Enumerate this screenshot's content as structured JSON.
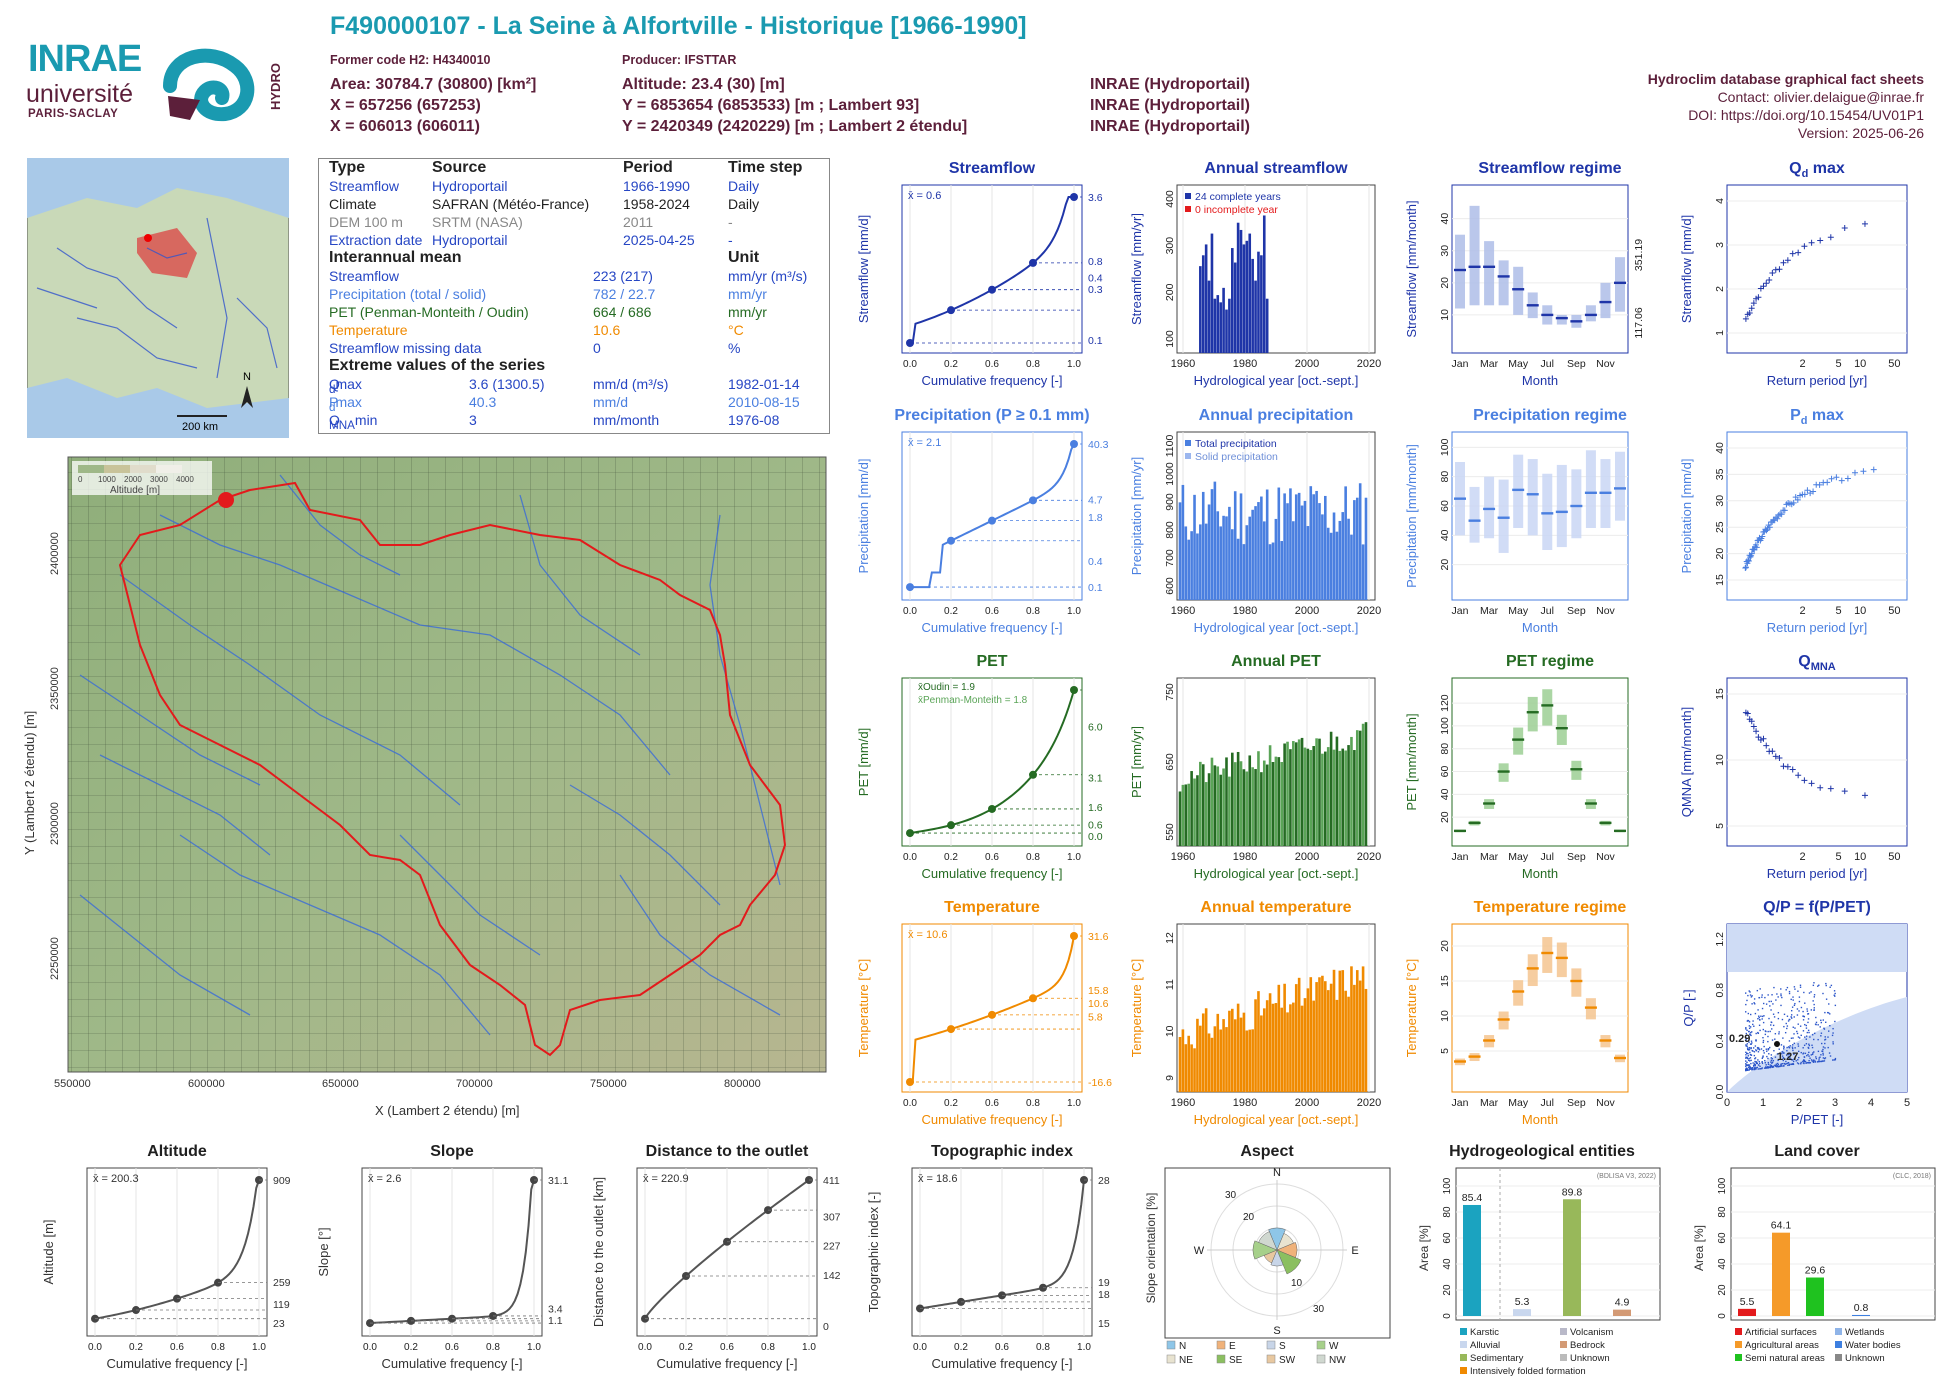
{
  "header": {
    "title": "F490000107 - La Seine à Alfortville - Historique [1966-1990]",
    "former_code": "Former code H2: H4340010",
    "producer": "Producer: IFSTTAR",
    "area": "Area: 30784.7 (30800) [km²]",
    "altitude": "Altitude: 23.4 (30) [m]",
    "x93": "X = 657256 (657253)",
    "y93": "Y = 6853654 (6853533) [m ; Lambert 93]",
    "x2": "X = 606013 (606011)",
    "y2": "Y = 2420349 (2420229) [m ; Lambert 2 étendu]",
    "src1": "INRAE (Hydroportail)",
    "src2": "INRAE (Hydroportail)",
    "src3": "INRAE (Hydroportail)",
    "db_title": "Hydroclim database graphical fact sheets",
    "contact": "Contact: olivier.delaigue@inrae.fr",
    "doi": "DOI: https://doi.org/10.15454/UV01P1",
    "version": "Version: 2025-06-26"
  },
  "logos": {
    "inrae": "INRAE",
    "universite": "université",
    "paris_saclay": "PARIS-SACLAY",
    "hydro": "HYDRO"
  },
  "info": {
    "h_type": "Type",
    "h_source": "Source",
    "h_period": "Period",
    "h_step": "Time step",
    "rows": [
      {
        "type": "Streamflow",
        "source": "Hydroportail",
        "period": "1966-1990",
        "step": "Daily"
      },
      {
        "type": "Climate",
        "source": "SAFRAN (Météo-France)",
        "period": "1958-2024",
        "step": "Daily"
      },
      {
        "type": "DEM 100 m",
        "source": "SRTM (NASA)",
        "period": "2011",
        "step": "-"
      },
      {
        "type": "Extraction date",
        "source": "Hydroportail",
        "period": "2025-04-25",
        "step": "-"
      }
    ],
    "h_mean": "Interannual mean",
    "h_unit": "Unit",
    "means": [
      {
        "name": "Streamflow",
        "value": "223 (217)",
        "unit": "mm/yr (m³/s)"
      },
      {
        "name": "Precipitation (total / solid)",
        "value": "782 / 22.7",
        "unit": "mm/yr"
      },
      {
        "name": "PET (Penman-Monteith / Oudin)",
        "value": "664 / 686",
        "unit": "mm/yr"
      },
      {
        "name": "Temperature",
        "value": "10.6",
        "unit": "°C"
      },
      {
        "name": "Streamflow missing data",
        "value": "0",
        "unit": "%"
      }
    ],
    "h_extreme": "Extreme values of the series",
    "extremes": [
      {
        "name": "Q",
        "sub": "d",
        "suffix": " max",
        "value": "3.6 (1300.5)",
        "unit": "mm/d (m³/s)",
        "date": "1982-01-14"
      },
      {
        "name": "P",
        "sub": "d",
        "suffix": " max",
        "value": "40.3",
        "unit": "mm/d",
        "date": "2010-08-15"
      },
      {
        "name": "Q",
        "sub": "MNA",
        "suffix": " min",
        "value": "3",
        "unit": "mm/month",
        "date": "1976-08"
      }
    ]
  },
  "minimap": {
    "scale": "200 km",
    "north": "N"
  },
  "bigmap": {
    "legend_ticks": [
      "0",
      "1000",
      "2000",
      "3000",
      "4000"
    ],
    "legend_title": "Altitude [m]",
    "xticks": [
      "550000",
      "600000",
      "650000",
      "700000",
      "750000",
      "800000"
    ],
    "yticks": [
      "2400000",
      "2350000",
      "2300000",
      "2250000"
    ],
    "xlabel": "X (Lambert 2 étendu) [m]",
    "ylabel": "Y (Lambert 2 étendu) [m]"
  },
  "colors": {
    "streamflow": "#1f35a8",
    "precip": "#4a7fe0",
    "pet": "#256b23",
    "temp": "#f08a00",
    "topo": "#555555",
    "title": "#1f1f1f"
  },
  "chart_data": [
    {
      "id": "streamflow_cdf",
      "type": "line",
      "title": "Streamflow",
      "ylabel": "Streamflow [mm/d]",
      "xlabel": "Cumulative frequency [-]",
      "mean": "x̄ = 0.6",
      "right_ticks": [
        "3.6",
        "0.8",
        "0.4",
        "0.3",
        "0.1"
      ],
      "scale": "log"
    },
    {
      "id": "annual_streamflow",
      "type": "bar",
      "title": "Annual streamflow",
      "ylabel": "Streamflow [mm/yr]",
      "xlabel": "Hydrological year [oct.-sept.]",
      "legend": [
        "24 complete years",
        "0 incomplete year"
      ],
      "xticks": [
        "1960",
        "1980",
        "2000",
        "2020"
      ],
      "yticks": [
        "100",
        "200",
        "300",
        "400"
      ],
      "years": [
        1966,
        1967,
        1968,
        1969,
        1970,
        1971,
        1972,
        1973,
        1974,
        1975,
        1976,
        1977,
        1978,
        1979,
        1980,
        1981,
        1982,
        1983,
        1984,
        1985,
        1986,
        1987,
        1988,
        1989
      ],
      "values": [
        240,
        270,
        300,
        200,
        330,
        150,
        160,
        140,
        180,
        120,
        150,
        290,
        250,
        360,
        340,
        300,
        310,
        330,
        260,
        200,
        280,
        270,
        380,
        150
      ]
    },
    {
      "id": "streamflow_regime",
      "type": "bar",
      "title": "Streamflow regime",
      "ylabel": "Streamflow [mm/month]",
      "xlabel": "Month",
      "right_ticks": [
        "351.19",
        "117.06"
      ],
      "months": [
        "Jan",
        "Mar",
        "May",
        "Jul",
        "Sep",
        "Nov"
      ],
      "median": [
        24,
        25,
        25,
        22,
        18,
        13,
        10,
        9,
        8,
        10,
        14,
        20
      ],
      "q1": [
        12,
        13,
        13,
        13,
        10,
        9,
        7,
        7,
        6,
        8,
        9,
        11
      ],
      "q3": [
        35,
        44,
        33,
        27,
        25,
        17,
        13,
        10,
        10,
        13,
        20,
        28
      ]
    },
    {
      "id": "qd_max",
      "type": "scatter",
      "title": "Q",
      "title_sub": "d",
      "title_suffix": " max",
      "ylabel": "Streamflow [mm/d]",
      "xlabel": "Return period [yr]",
      "xticks": [
        "2",
        "5",
        "10",
        "50"
      ],
      "yticks": [
        "1",
        "2",
        "3",
        "4"
      ]
    },
    {
      "id": "precip_cdf",
      "type": "line",
      "title": "Precipitation (P ≥ 0.1 mm)",
      "ylabel": "Precipitation [mm/d]",
      "xlabel": "Cumulative frequency [-]",
      "mean": "x̄ = 2.1",
      "right_ticks": [
        "40.3",
        "4.7",
        "1.8",
        "0.4",
        "0.1"
      ],
      "scale": "log"
    },
    {
      "id": "annual_precip",
      "type": "bar",
      "title": "Annual precipitation",
      "ylabel": "Precipitation [mm/yr]",
      "xlabel": "Hydrological year [oct.-sept.]",
      "legend": [
        "Total precipitation",
        "Solid precipitation"
      ],
      "xticks": [
        "1960",
        "1980",
        "2000",
        "2020"
      ],
      "yticks": [
        "600",
        "700",
        "800",
        "900",
        "1000",
        "1100"
      ]
    },
    {
      "id": "precip_regime",
      "type": "bar",
      "title": "Precipitation regime",
      "ylabel": "Precipitation [mm/month]",
      "xlabel": "Month",
      "months": [
        "Jan",
        "Mar",
        "May",
        "Jul",
        "Sep",
        "Nov"
      ],
      "median": [
        65,
        50,
        58,
        52,
        71,
        68,
        55,
        56,
        60,
        69,
        69,
        72
      ],
      "q1": [
        40,
        35,
        38,
        28,
        45,
        40,
        30,
        32,
        38,
        45,
        45,
        50
      ],
      "q3": [
        90,
        73,
        80,
        78,
        95,
        92,
        82,
        88,
        85,
        98,
        92,
        97
      ]
    },
    {
      "id": "pd_max",
      "type": "scatter",
      "title": "P",
      "title_sub": "d",
      "title_suffix": " max",
      "ylabel": "Precipitation [mm/d]",
      "xlabel": "Return period [yr]",
      "xticks": [
        "2",
        "5",
        "10",
        "50"
      ],
      "yticks": [
        "15",
        "20",
        "25",
        "30",
        "35",
        "40"
      ]
    },
    {
      "id": "pet_cdf",
      "type": "line",
      "title": "PET",
      "ylabel": "PET [mm/d]",
      "xlabel": "Cumulative frequency [-]",
      "mean1": "x̄Oudin = 1.9",
      "mean2": "x̄Penman-Monteith = 1.8",
      "right_ticks": [
        "6.0",
        "3.1",
        "1.6",
        "0.6",
        "0.0"
      ]
    },
    {
      "id": "annual_pet",
      "type": "bar",
      "title": "Annual PET",
      "ylabel": "PET [mm/yr]",
      "xlabel": "Hydrological year [oct.-sept.]",
      "xticks": [
        "1960",
        "1980",
        "2000",
        "2020"
      ],
      "yticks": [
        "550",
        "650",
        "750"
      ]
    },
    {
      "id": "pet_regime",
      "type": "bar",
      "title": "PET regime",
      "ylabel": "PET [mm/month]",
      "xlabel": "Month",
      "months": [
        "Jan",
        "Mar",
        "May",
        "Jul",
        "Sep",
        "Nov"
      ],
      "median": [
        8,
        15,
        32,
        60,
        88,
        112,
        118,
        98,
        62,
        32,
        15,
        8
      ],
      "yticks": [
        "20",
        "40",
        "60",
        "80",
        "100",
        "120"
      ]
    },
    {
      "id": "qmna",
      "type": "scatter",
      "title": "Q",
      "title_sub": "MNA",
      "title_suffix": "",
      "ylabel": "QMNA [mm/month]",
      "xlabel": "Return period [yr]",
      "xticks": [
        "2",
        "5",
        "10",
        "50"
      ],
      "yticks": [
        "5",
        "10",
        "15"
      ]
    },
    {
      "id": "temp_cdf",
      "type": "line",
      "title": "Temperature",
      "ylabel": "Temperature [°C]",
      "xlabel": "Cumulative frequency [-]",
      "mean": "x̄ = 10.6",
      "right_ticks": [
        "31.6",
        "15.8",
        "10.6",
        "5.8",
        "-16.6"
      ]
    },
    {
      "id": "annual_temp",
      "type": "bar",
      "title": "Annual temperature",
      "ylabel": "Temperature [°C]",
      "xlabel": "Hydrological year [oct.-sept.]",
      "xticks": [
        "1960",
        "1980",
        "2000",
        "2020"
      ],
      "yticks": [
        "9",
        "10",
        "11",
        "12"
      ]
    },
    {
      "id": "temp_regime",
      "type": "bar",
      "title": "Temperature regime",
      "ylabel": "Temperature [°C]",
      "xlabel": "Month",
      "months": [
        "Jan",
        "Mar",
        "May",
        "Jul",
        "Sep",
        "Nov"
      ],
      "median": [
        3.5,
        4.2,
        6.5,
        9.5,
        13.5,
        16.8,
        19,
        18.3,
        15,
        11.2,
        6.5,
        4
      ],
      "yticks": [
        "5",
        "10",
        "15",
        "20"
      ]
    },
    {
      "id": "qp_ppet",
      "type": "scatter",
      "title": "Q/P = f(P/PET)",
      "ylabel": "Q/P [-]",
      "xlabel": "P/PET [-]",
      "point_labels": [
        "0.29",
        "1.27"
      ],
      "xticks": [
        "0",
        "1",
        "2",
        "3",
        "4",
        "5"
      ],
      "yticks": [
        "0.0",
        "0.4",
        "0.8",
        "1.2"
      ]
    },
    {
      "id": "altitude",
      "type": "line",
      "title": "Altitude",
      "ylabel": "Altitude [m]",
      "xlabel": "Cumulative frequency [-]",
      "mean": "x̄ = 200.3",
      "right_ticks": [
        "909",
        "259",
        "119",
        "23"
      ]
    },
    {
      "id": "slope",
      "type": "line",
      "title": "Slope",
      "ylabel": "Slope [°]",
      "xlabel": "Cumulative frequency [-]",
      "mean": "x̄ = 2.6",
      "right_ticks": [
        "31.1",
        "3.4",
        "1.1"
      ]
    },
    {
      "id": "distance",
      "type": "line",
      "title": "Distance to the outlet",
      "ylabel": "Distance to the outlet [km]",
      "xlabel": "Cumulative frequency [-]",
      "mean": "x̄ = 220.9",
      "right_ticks": [
        "411",
        "307",
        "227",
        "142",
        "0"
      ]
    },
    {
      "id": "topo_index",
      "type": "line",
      "title": "Topographic index",
      "ylabel": "Topographic index [-]",
      "xlabel": "Cumulative frequency [-]",
      "mean": "x̄ = 18.6",
      "right_ticks": [
        "28",
        "19",
        "18",
        "15"
      ]
    },
    {
      "id": "aspect",
      "type": "pie",
      "title": "Aspect",
      "ylabel": "Slope orientation [%]",
      "dirs": [
        "N",
        "E",
        "S",
        "W"
      ],
      "rings": [
        "10",
        "20",
        "30"
      ],
      "legend": [
        "N",
        "E",
        "S",
        "W",
        "NE",
        "SE",
        "SW",
        "NW"
      ]
    },
    {
      "id": "hydrogeo",
      "type": "bar",
      "title": "Hydrogeological entities",
      "ylabel": "Area [%]",
      "note": "(BDLISA V3, 2022)",
      "values": [
        85.4,
        5.3,
        89.8,
        4.9
      ],
      "labels": [
        "85.4",
        "5.3",
        "89.8",
        "4.9"
      ],
      "legend": [
        "Karstic",
        "Volcanism",
        "Alluvial",
        "Bedrock",
        "Sedimentary",
        "Unknown",
        "Intensively folded formation"
      ],
      "yticks": [
        "0",
        "20",
        "40",
        "60",
        "80",
        "100"
      ]
    },
    {
      "id": "landcover",
      "type": "bar",
      "title": "Land cover",
      "ylabel": "Area [%]",
      "note": "(CLC, 2018)",
      "values": [
        5.5,
        64.1,
        29.6,
        0.8
      ],
      "labels": [
        "5.5",
        "64.1",
        "29.6",
        "0.8"
      ],
      "legend": [
        "Artificial surfaces",
        "Wetlands",
        "Agricultural areas",
        "Water bodies",
        "Semi natural areas",
        "Unknown"
      ],
      "yticks": [
        "0",
        "20",
        "40",
        "60",
        "80",
        "100"
      ]
    }
  ]
}
